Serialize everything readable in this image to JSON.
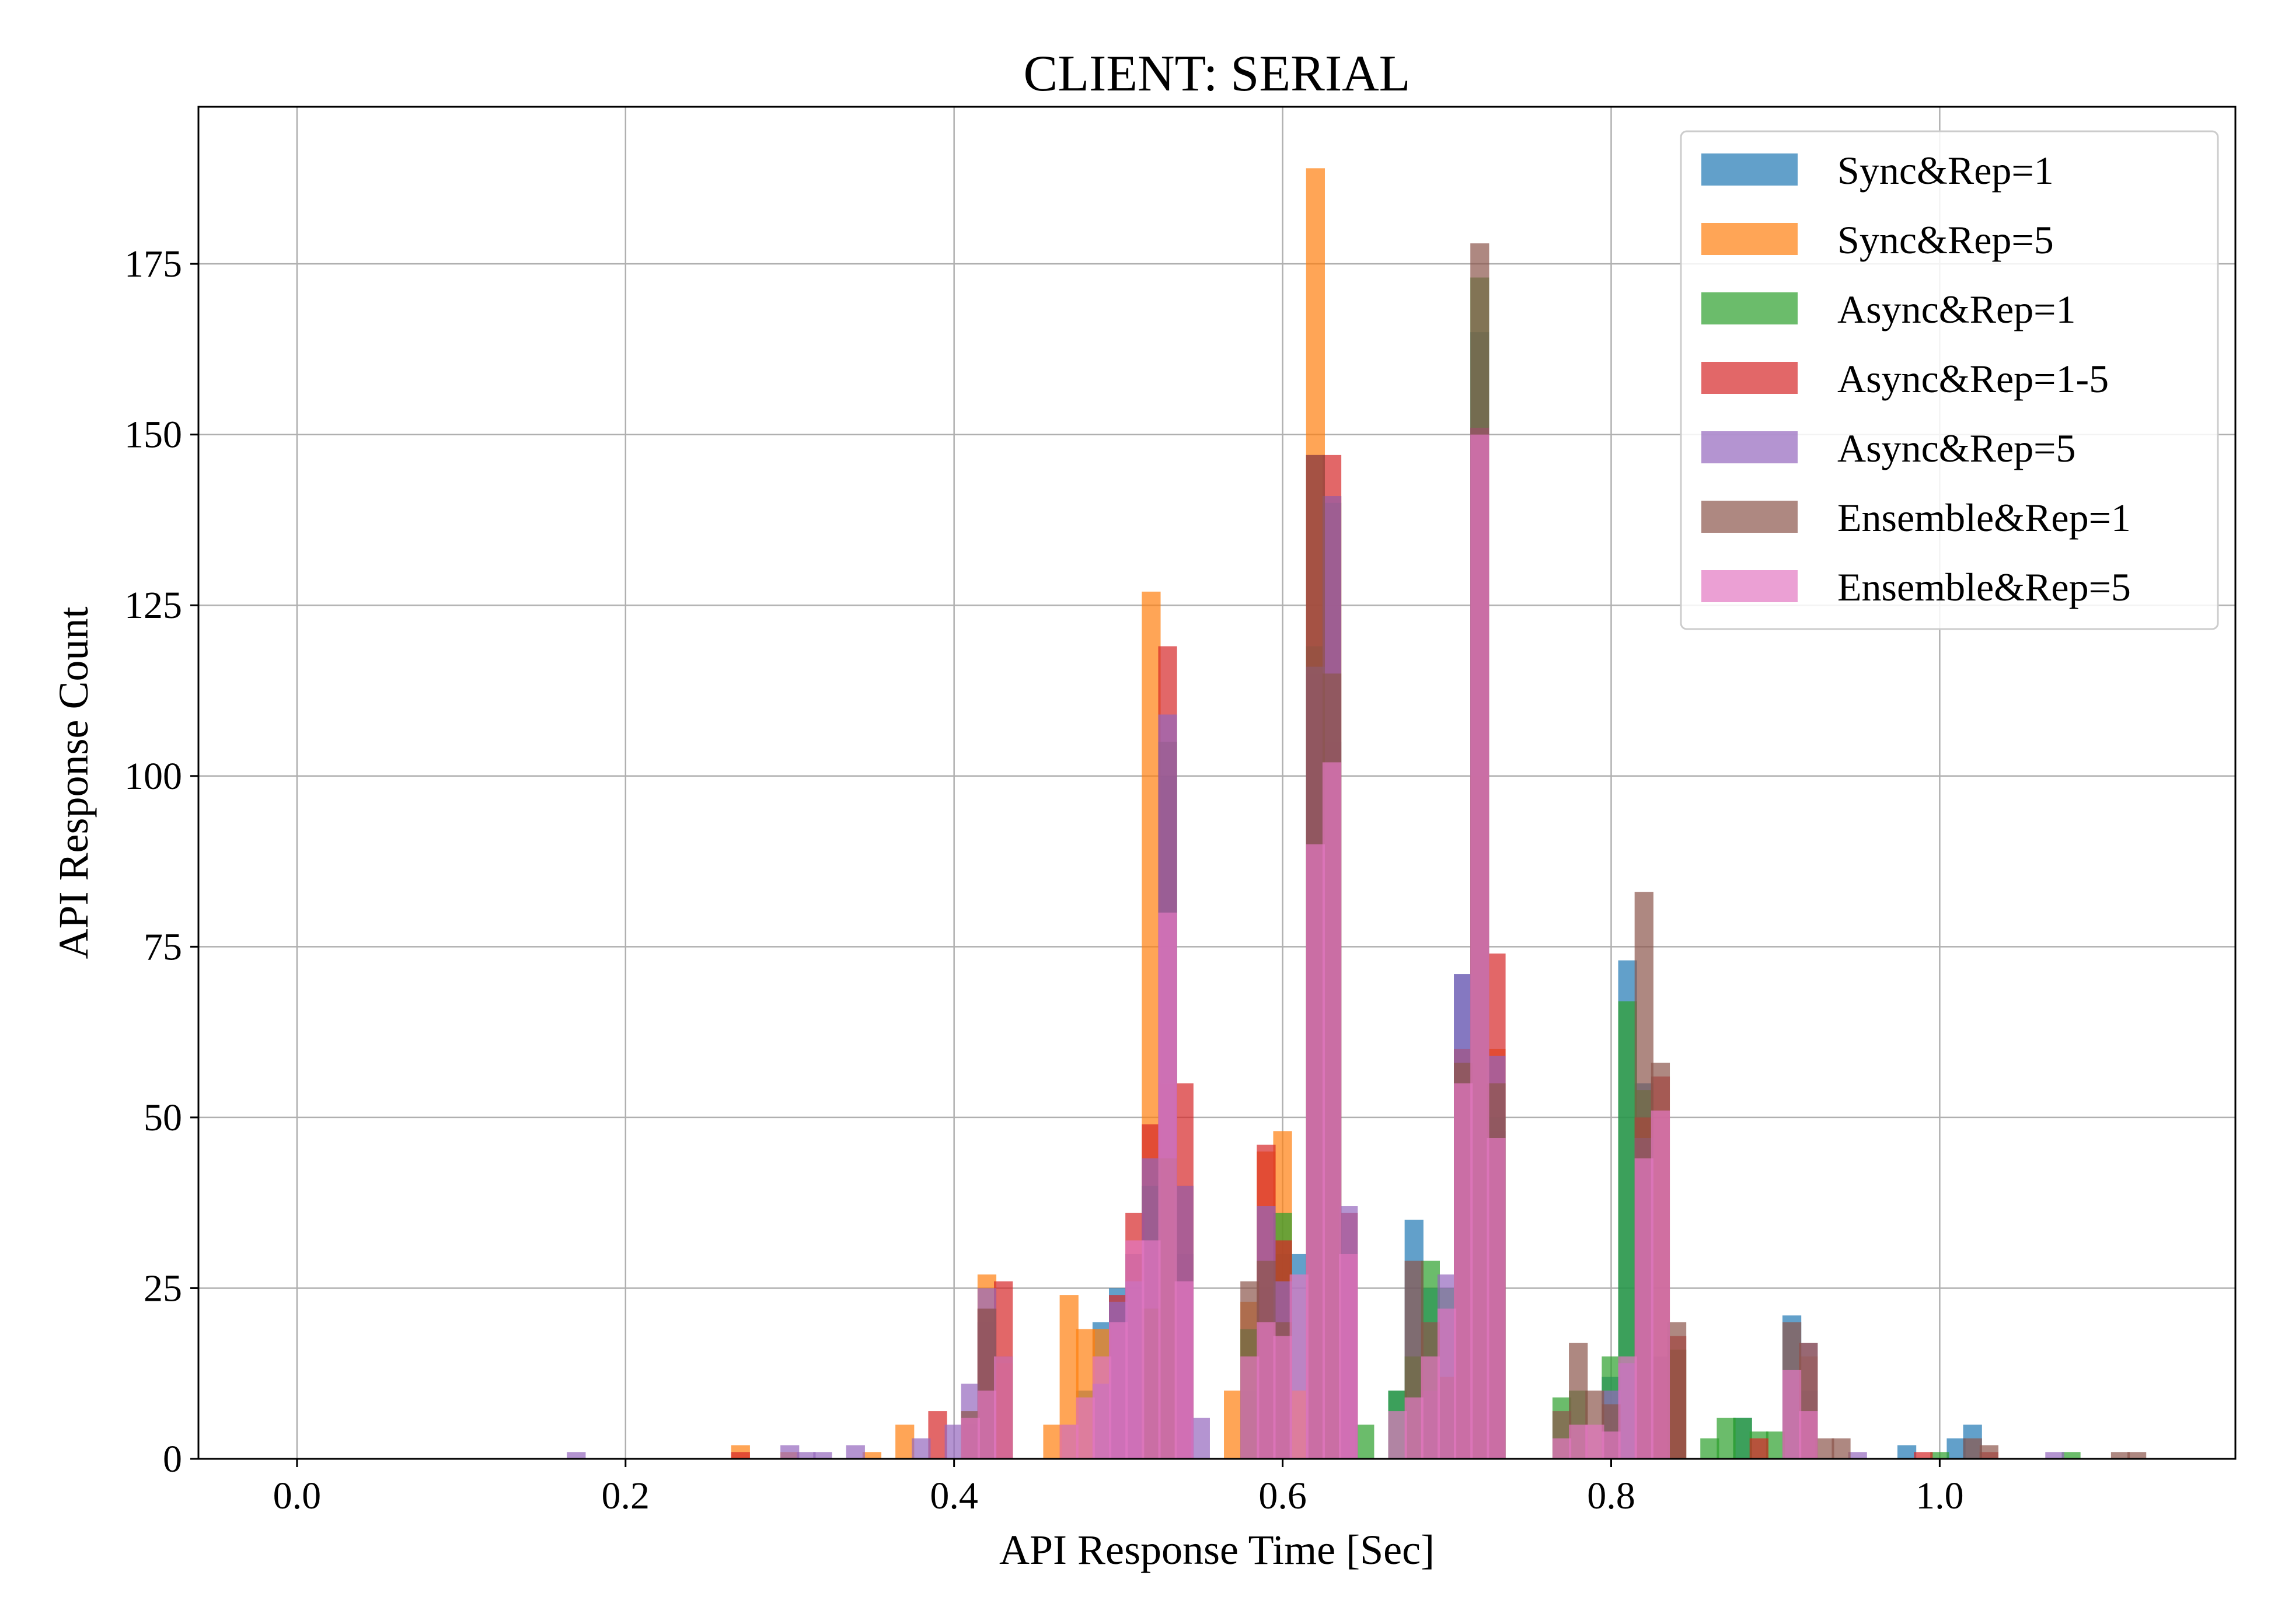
{
  "chart_data": {
    "type": "bar",
    "subtype": "overlaid-histogram",
    "title": "CLIENT: SERIAL",
    "xlabel": "API Response Time [Sec]",
    "ylabel": "API Response Count",
    "xlim": [
      -0.06,
      1.18
    ],
    "ylim": [
      0,
      198
    ],
    "xticks": [
      0.0,
      0.2,
      0.4,
      0.6,
      0.8,
      1.0
    ],
    "xtick_labels": [
      "0.0",
      "0.2",
      "0.4",
      "0.6",
      "0.8",
      "1.0"
    ],
    "yticks": [
      0,
      25,
      50,
      75,
      100,
      125,
      150,
      175
    ],
    "ytick_labels": [
      "0",
      "25",
      "50",
      "75",
      "100",
      "125",
      "150",
      "175"
    ],
    "grid": true,
    "legend_position": "top-right",
    "bin_width": 0.01145,
    "series": [
      {
        "name": "Sync&Rep=1",
        "color": "#1f77b4",
        "x": [
          0.41,
          0.42,
          0.43,
          0.47,
          0.48,
          0.49,
          0.5,
          0.51,
          0.52,
          0.53,
          0.54,
          0.58,
          0.59,
          0.6,
          0.61,
          0.62,
          0.63,
          0.64,
          0.67,
          0.68,
          0.69,
          0.7,
          0.71,
          0.72,
          0.73,
          0.8,
          0.81,
          0.82,
          0.83,
          0.88,
          0.91,
          0.92,
          0.98,
          1.01,
          1.02
        ],
        "values": [
          5,
          20,
          15,
          5,
          10,
          20,
          25,
          30,
          40,
          100,
          30,
          10,
          25,
          30,
          30,
          115,
          105,
          30,
          10,
          35,
          25,
          22,
          71,
          165,
          48,
          12,
          73,
          55,
          15,
          6,
          21,
          10,
          2,
          3,
          5
        ]
      },
      {
        "name": "Sync&Rep=5",
        "color": "#ff7f0e",
        "x": [
          0.27,
          0.3,
          0.35,
          0.37,
          0.42,
          0.43,
          0.46,
          0.47,
          0.48,
          0.49,
          0.52,
          0.53,
          0.54,
          0.57,
          0.58,
          0.59,
          0.6,
          0.61,
          0.62,
          0.63,
          0.64,
          0.72,
          0.73,
          0.82,
          0.92
        ],
        "values": [
          2,
          1,
          1,
          5,
          27,
          14,
          5,
          24,
          19,
          19,
          127,
          55,
          40,
          10,
          23,
          45,
          48,
          10,
          189,
          141,
          30,
          100,
          60,
          50,
          15
        ]
      },
      {
        "name": "Async&Rep=1",
        "color": "#2ca02c",
        "x": [
          0.42,
          0.43,
          0.52,
          0.53,
          0.58,
          0.6,
          0.62,
          0.63,
          0.65,
          0.67,
          0.68,
          0.69,
          0.7,
          0.71,
          0.72,
          0.73,
          0.77,
          0.78,
          0.8,
          0.81,
          0.82,
          0.84,
          0.86,
          0.87,
          0.88,
          0.89,
          0.9,
          1.0,
          1.08
        ],
        "values": [
          10,
          15,
          40,
          105,
          19,
          36,
          119,
          140,
          5,
          10,
          15,
          29,
          25,
          60,
          173,
          50,
          9,
          10,
          15,
          67,
          54,
          16,
          3,
          6,
          6,
          4,
          4,
          1,
          1
        ]
      },
      {
        "name": "Async&Rep=1-5",
        "color": "#d62728",
        "x": [
          0.27,
          0.39,
          0.41,
          0.42,
          0.43,
          0.5,
          0.51,
          0.52,
          0.53,
          0.54,
          0.59,
          0.6,
          0.62,
          0.63,
          0.64,
          0.71,
          0.72,
          0.73,
          0.82,
          0.83,
          0.84,
          0.89,
          0.99,
          1.03
        ],
        "values": [
          1,
          7,
          6,
          22,
          26,
          24,
          36,
          49,
          119,
          55,
          46,
          32,
          147,
          147,
          36,
          60,
          151,
          74,
          50,
          56,
          18,
          3,
          1,
          1
        ]
      },
      {
        "name": "Async&Rep=5",
        "color": "#9467bd",
        "x": [
          0.17,
          0.3,
          0.31,
          0.32,
          0.34,
          0.38,
          0.4,
          0.41,
          0.42,
          0.49,
          0.5,
          0.51,
          0.52,
          0.53,
          0.54,
          0.55,
          0.59,
          0.6,
          0.62,
          0.63,
          0.64,
          0.69,
          0.7,
          0.71,
          0.72,
          0.73,
          0.8,
          0.81,
          0.82,
          0.92,
          0.95,
          1.07
        ],
        "values": [
          1,
          2,
          1,
          1,
          2,
          3,
          5,
          11,
          25,
          11,
          23,
          26,
          44,
          109,
          40,
          6,
          37,
          26,
          116,
          141,
          37,
          10,
          27,
          71,
          151,
          59,
          10,
          14,
          47,
          17,
          1,
          1
        ]
      },
      {
        "name": "Ensemble&Rep=1",
        "color": "#8c564b",
        "x": [
          0.41,
          0.42,
          0.52,
          0.53,
          0.58,
          0.59,
          0.6,
          0.62,
          0.63,
          0.68,
          0.69,
          0.7,
          0.71,
          0.72,
          0.73,
          0.77,
          0.78,
          0.79,
          0.8,
          0.82,
          0.83,
          0.84,
          0.91,
          0.92,
          0.93,
          0.94,
          1.02,
          1.03,
          1.11,
          1.12
        ],
        "values": [
          7,
          22,
          22,
          44,
          26,
          29,
          20,
          147,
          115,
          29,
          20,
          12,
          58,
          178,
          55,
          7,
          17,
          10,
          8,
          83,
          58,
          20,
          20,
          17,
          3,
          3,
          3,
          2,
          1,
          1
        ]
      },
      {
        "name": "Ensemble&Rep=5",
        "color": "#e377c2",
        "x": [
          0.41,
          0.42,
          0.43,
          0.47,
          0.48,
          0.49,
          0.5,
          0.51,
          0.52,
          0.53,
          0.54,
          0.58,
          0.59,
          0.6,
          0.61,
          0.62,
          0.63,
          0.64,
          0.67,
          0.68,
          0.69,
          0.7,
          0.71,
          0.72,
          0.73,
          0.77,
          0.78,
          0.79,
          0.8,
          0.81,
          0.82,
          0.83,
          0.91,
          0.92
        ],
        "values": [
          6,
          10,
          15,
          5,
          9,
          15,
          20,
          32,
          32,
          80,
          26,
          15,
          20,
          18,
          27,
          90,
          102,
          30,
          7,
          9,
          15,
          22,
          55,
          150,
          47,
          3,
          5,
          5,
          4,
          15,
          44,
          51,
          13,
          7
        ]
      }
    ]
  }
}
